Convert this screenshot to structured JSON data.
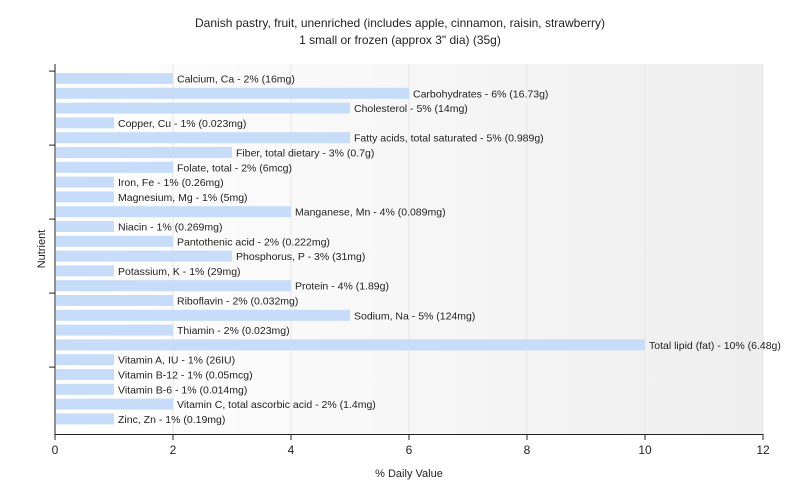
{
  "chart_data": {
    "type": "bar",
    "orientation": "horizontal",
    "title": "Danish pastry, fruit, unenriched (includes apple, cinnamon, raisin, strawberry)",
    "subtitle": "1 small or frozen (approx 3\" dia) (35g)",
    "xlabel": "% Daily Value",
    "ylabel": "Nutrient",
    "xlim": [
      0,
      12
    ],
    "xticks": [
      0,
      2,
      4,
      6,
      8,
      10,
      12
    ],
    "grid": true,
    "colors": {
      "bar": "#c6dcf8",
      "axis": "#222222",
      "grid": "#e6e6e6"
    },
    "categories": [
      "Calcium, Ca",
      "Carbohydrates",
      "Cholesterol",
      "Copper, Cu",
      "Fatty acids, total saturated",
      "Fiber, total dietary",
      "Folate, total",
      "Iron, Fe",
      "Magnesium, Mg",
      "Manganese, Mn",
      "Niacin",
      "Pantothenic acid",
      "Phosphorus, P",
      "Potassium, K",
      "Protein",
      "Riboflavin",
      "Sodium, Na",
      "Thiamin",
      "Total lipid (fat)",
      "Vitamin A, IU",
      "Vitamin B-12",
      "Vitamin B-6",
      "Vitamin C, total ascorbic acid",
      "Zinc, Zn"
    ],
    "values": [
      2,
      6,
      5,
      1,
      5,
      3,
      2,
      1,
      1,
      4,
      1,
      2,
      3,
      1,
      4,
      2,
      5,
      2,
      10,
      1,
      1,
      1,
      2,
      1
    ],
    "labels": [
      "Calcium, Ca - 2% (16mg)",
      "Carbohydrates - 6% (16.73g)",
      "Cholesterol - 5% (14mg)",
      "Copper, Cu - 1% (0.023mg)",
      "Fatty acids, total saturated - 5% (0.989g)",
      "Fiber, total dietary - 3% (0.7g)",
      "Folate, total - 2% (6mcg)",
      "Iron, Fe - 1% (0.26mg)",
      "Magnesium, Mg - 1% (5mg)",
      "Manganese, Mn - 4% (0.089mg)",
      "Niacin - 1% (0.269mg)",
      "Pantothenic acid - 2% (0.222mg)",
      "Phosphorus, P - 3% (31mg)",
      "Potassium, K - 1% (29mg)",
      "Protein - 4% (1.89g)",
      "Riboflavin - 2% (0.032mg)",
      "Sodium, Na - 5% (124mg)",
      "Thiamin - 2% (0.023mg)",
      "Total lipid (fat) - 10% (6.48g)",
      "Vitamin A, IU - 1% (26IU)",
      "Vitamin B-12 - 1% (0.05mcg)",
      "Vitamin B-6 - 1% (0.014mg)",
      "Vitamin C, total ascorbic acid - 2% (1.4mg)",
      "Zinc, Zn - 1% (0.19mg)"
    ]
  }
}
